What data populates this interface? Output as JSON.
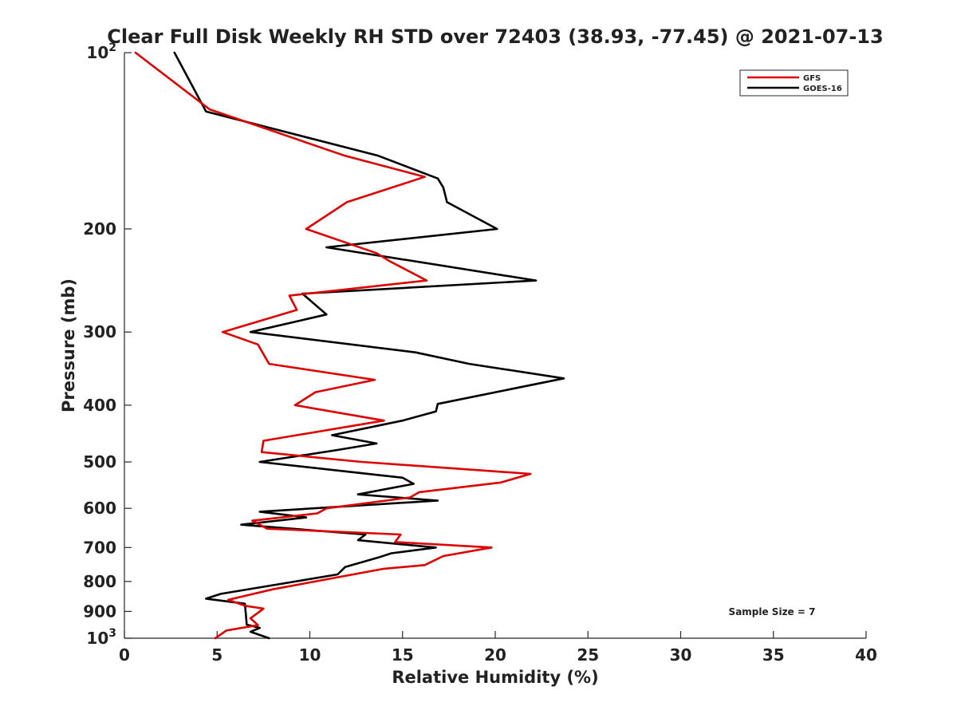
{
  "chart_data": {
    "type": "line",
    "title": "Clear Full Disk Weekly RH STD over 72403 (38.93, -77.45) @ 2021-07-13",
    "xlabel": "Relative Humidity (%)",
    "ylabel": "Pressure (mb)",
    "xlim": [
      0,
      40
    ],
    "ylim": [
      100,
      1000
    ],
    "y_scale": "log",
    "y_reversed": true,
    "grid": false,
    "legend_position": "top-right",
    "x_ticks": [
      0,
      5,
      10,
      15,
      20,
      25,
      30,
      35,
      40
    ],
    "y_ticks": [
      {
        "value": 100,
        "label": "10",
        "exp": "2"
      },
      {
        "value": 200,
        "label": "200",
        "exp": ""
      },
      {
        "value": 300,
        "label": "300",
        "exp": ""
      },
      {
        "value": 400,
        "label": "400",
        "exp": ""
      },
      {
        "value": 500,
        "label": "500",
        "exp": ""
      },
      {
        "value": 600,
        "label": "600",
        "exp": ""
      },
      {
        "value": 700,
        "label": "700",
        "exp": ""
      },
      {
        "value": 800,
        "label": "800",
        "exp": ""
      },
      {
        "value": 900,
        "label": "900",
        "exp": ""
      },
      {
        "value": 1000,
        "label": "10",
        "exp": "3"
      }
    ],
    "annotation": "Sample Size = 7",
    "series": [
      {
        "name": "GFS",
        "color": "#dd0000",
        "points": [
          [
            0.6,
            100
          ],
          [
            4.6,
            125
          ],
          [
            11.9,
            150
          ],
          [
            16.2,
            163
          ],
          [
            12.0,
            180
          ],
          [
            9.8,
            200
          ],
          [
            13.6,
            220
          ],
          [
            14.3,
            227
          ],
          [
            16.3,
            245
          ],
          [
            8.9,
            260
          ],
          [
            9.3,
            275
          ],
          [
            5.3,
            300
          ],
          [
            7.2,
            315
          ],
          [
            7.8,
            340
          ],
          [
            13.5,
            362
          ],
          [
            10.3,
            380
          ],
          [
            9.2,
            400
          ],
          [
            14.0,
            425
          ],
          [
            7.5,
            460
          ],
          [
            7.4,
            481
          ],
          [
            12.8,
            500
          ],
          [
            21.9,
            524
          ],
          [
            20.3,
            542
          ],
          [
            15.9,
            563
          ],
          [
            15.4,
            575
          ],
          [
            10.9,
            600
          ],
          [
            10.4,
            612
          ],
          [
            6.9,
            630
          ],
          [
            7.7,
            650
          ],
          [
            14.9,
            665
          ],
          [
            14.6,
            685
          ],
          [
            19.8,
            700
          ],
          [
            17.2,
            724
          ],
          [
            16.2,
            750
          ],
          [
            14.0,
            761
          ],
          [
            8.0,
            825
          ],
          [
            5.6,
            860
          ],
          [
            6.5,
            880
          ],
          [
            7.5,
            890
          ],
          [
            6.8,
            925
          ],
          [
            7.2,
            950
          ],
          [
            5.5,
            970
          ],
          [
            4.9,
            1000
          ]
        ]
      },
      {
        "name": "GOES-16",
        "color": "#000000",
        "points": [
          [
            2.7,
            100
          ],
          [
            4.4,
            126
          ],
          [
            13.7,
            150
          ],
          [
            16.9,
            164
          ],
          [
            17.2,
            170
          ],
          [
            17.4,
            180
          ],
          [
            20.1,
            200
          ],
          [
            10.9,
            215
          ],
          [
            22.2,
            245
          ],
          [
            9.6,
            258
          ],
          [
            10.9,
            280
          ],
          [
            6.8,
            300
          ],
          [
            15.7,
            325
          ],
          [
            18.6,
            340
          ],
          [
            23.7,
            360
          ],
          [
            16.9,
            398
          ],
          [
            16.8,
            410
          ],
          [
            15.0,
            425
          ],
          [
            11.2,
            450
          ],
          [
            13.6,
            465
          ],
          [
            11.5,
            477
          ],
          [
            7.3,
            500
          ],
          [
            15.0,
            532
          ],
          [
            15.6,
            545
          ],
          [
            12.6,
            568
          ],
          [
            16.9,
            582
          ],
          [
            7.3,
            608
          ],
          [
            9.8,
            622
          ],
          [
            6.3,
            640
          ],
          [
            13.0,
            665
          ],
          [
            12.6,
            680
          ],
          [
            16.8,
            700
          ],
          [
            14.4,
            716
          ],
          [
            13.7,
            728
          ],
          [
            11.9,
            756
          ],
          [
            11.5,
            778
          ],
          [
            8.7,
            805
          ],
          [
            5.2,
            840
          ],
          [
            4.4,
            856
          ],
          [
            6.5,
            873
          ],
          [
            6.6,
            948
          ],
          [
            7.3,
            960
          ],
          [
            6.8,
            975
          ],
          [
            7.8,
            1000
          ]
        ]
      }
    ]
  }
}
